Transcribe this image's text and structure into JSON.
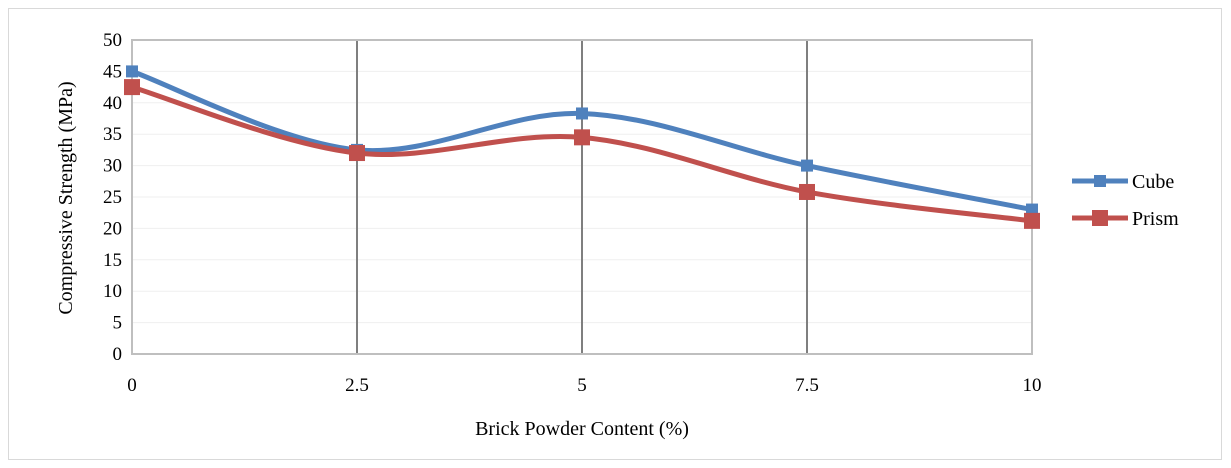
{
  "chart_data": {
    "type": "line",
    "smooth": true,
    "x": [
      "0",
      "2.5",
      "5",
      "7.5",
      "10"
    ],
    "xlabel": "Brick Powder Content (%)",
    "ylabel": "Compressive Strength (MPa)",
    "ylim": [
      0,
      50
    ],
    "ytick_step": 5,
    "grid": {
      "vertical_lines_at_x": [
        "2.5",
        "5",
        "7.5"
      ],
      "horizontal_faint": true
    },
    "legend_placement": "right",
    "series": [
      {
        "name": "Cube",
        "values": [
          45,
          32.5,
          38.3,
          30,
          23
        ],
        "color": "#4f81bd",
        "marker": "square"
      },
      {
        "name": "Prism",
        "values": [
          42.5,
          32,
          34.5,
          25.8,
          21.2
        ],
        "color": "#c0504d",
        "marker": "square"
      }
    ]
  }
}
